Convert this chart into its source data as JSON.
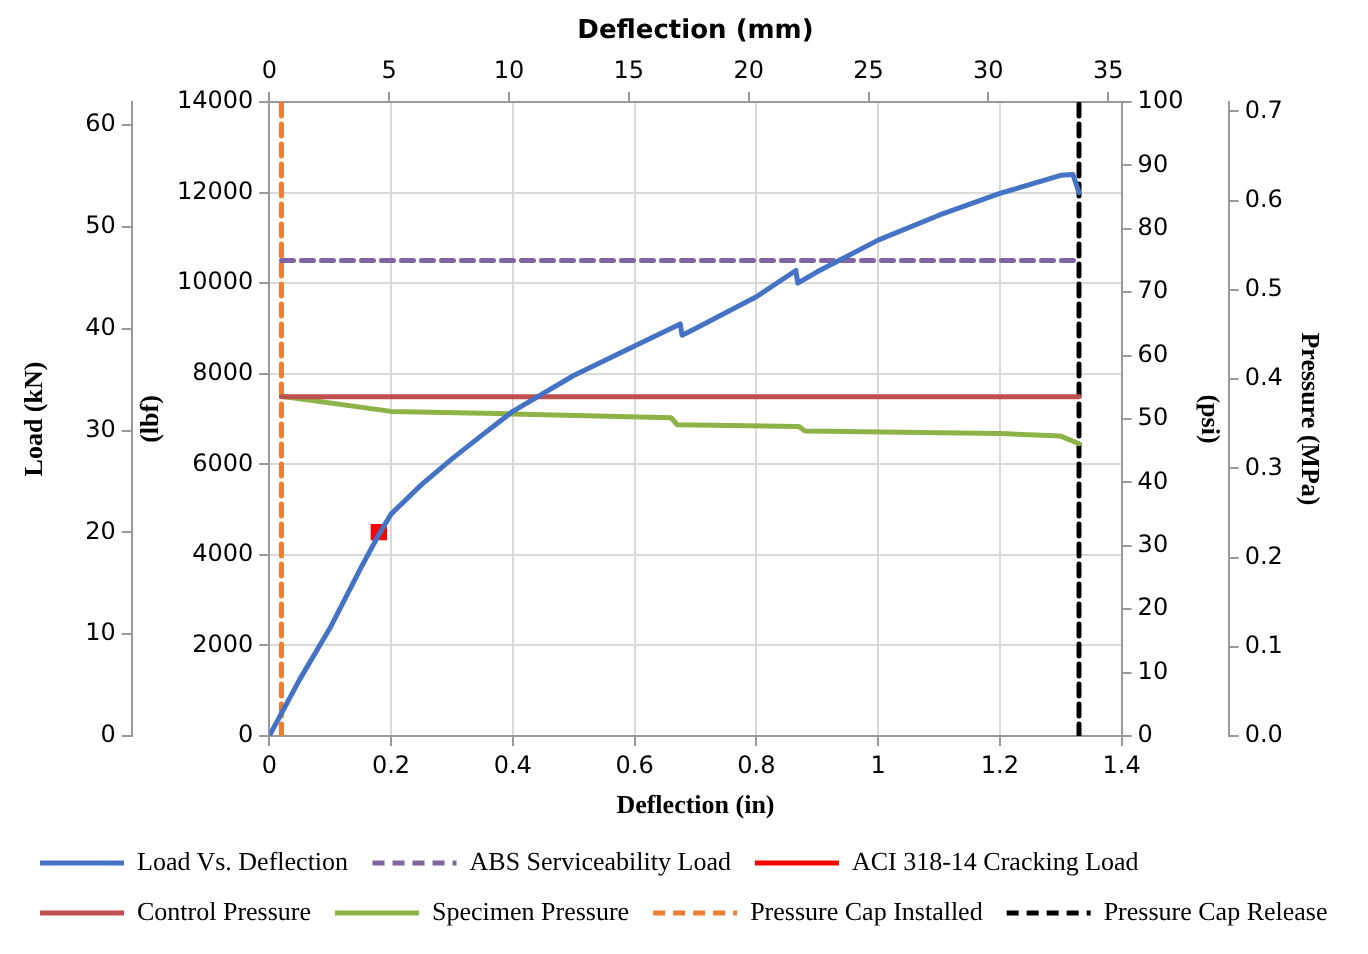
{
  "chart_data": {
    "type": "line",
    "xlabel": "Deflection (in)",
    "x2label": "Deflection (mm)",
    "ylabel": "(lbf)",
    "y2label": "(psi)",
    "y3label": "Load (kN)",
    "xlim": [
      0,
      1.4
    ],
    "xticks": [
      0,
      0.2,
      0.4,
      0.6,
      0.8,
      1,
      1.2,
      1.4
    ],
    "x2lim": [
      0,
      35.56
    ],
    "x2ticks": [
      0,
      5,
      10,
      15,
      20,
      25,
      30,
      35
    ],
    "ylim": [
      0,
      14000
    ],
    "yticks": [
      0,
      2000,
      4000,
      6000,
      8000,
      10000,
      12000,
      14000
    ],
    "y2lim": [
      0,
      100
    ],
    "y2ticks": [
      0,
      10,
      20,
      30,
      40,
      50,
      60,
      70,
      80,
      90,
      100
    ],
    "y3lim": [
      0,
      62.28
    ],
    "y3ticks": [
      0,
      10,
      20,
      30,
      40,
      50,
      60
    ],
    "annotations": [
      "Pressure (MPa)",
      "0.0",
      "0.1",
      "0.2",
      "0.3",
      "0.4",
      "0.5",
      "0.6",
      "0.7"
    ],
    "grid": true,
    "legend": "bottom",
    "marker": "none",
    "series": [
      {
        "name": "Load Vs. Deflection",
        "color": "#4472c4",
        "axis": "y",
        "x": [
          0,
          0.05,
          0.1,
          0.15,
          0.18,
          0.2,
          0.25,
          0.3,
          0.35,
          0.4,
          0.5,
          0.6,
          0.675,
          0.678,
          0.7,
          0.8,
          0.865,
          0.868,
          0.9,
          1.0,
          1.1,
          1.2,
          1.3,
          1.32,
          1.33
        ],
        "values": [
          0,
          1250,
          2390,
          3700,
          4450,
          4900,
          5550,
          6120,
          6650,
          7170,
          7960,
          8610,
          9100,
          8850,
          9000,
          9700,
          10280,
          10000,
          10250,
          10950,
          11500,
          11980,
          12380,
          12400,
          12000
        ]
      },
      {
        "name": "ABS Serviceability Load",
        "color": "#8064a2",
        "axis": "y",
        "line_style": "dashed",
        "x": [
          0.02,
          1.33
        ],
        "values": [
          10500,
          10500
        ]
      },
      {
        "name": "ACI 318-14 Cracking Load",
        "type": "scatter",
        "marker": "square",
        "color": "#ff0000",
        "axis": "y",
        "x": [
          0.18
        ],
        "values": [
          4500
        ]
      },
      {
        "name": "Control Pressure",
        "color": "#c0504d",
        "axis": "y2",
        "x": [
          0.02,
          1.33
        ],
        "values": [
          53.5,
          53.5
        ]
      },
      {
        "name": "Specimen Pressure",
        "color": "#8db348",
        "axis": "y2",
        "x": [
          0.02,
          0.2,
          0.4,
          0.66,
          0.67,
          0.87,
          0.88,
          1.2,
          1.3,
          1.33
        ],
        "values": [
          53.6,
          51.2,
          50.8,
          50.2,
          49.1,
          48.8,
          48.1,
          47.7,
          47.3,
          46.1
        ]
      },
      {
        "name": "Pressure Cap Installed",
        "color": "#ed7d31",
        "axis": "y",
        "line_style": "dashed",
        "x": [
          0.02,
          0.02
        ],
        "values": [
          0,
          14000
        ]
      },
      {
        "name": "Pressure Cap Release",
        "color": "#000000",
        "axis": "y",
        "line_style": "dashed",
        "x": [
          1.33,
          1.33
        ],
        "values": [
          0,
          14000
        ]
      }
    ]
  }
}
